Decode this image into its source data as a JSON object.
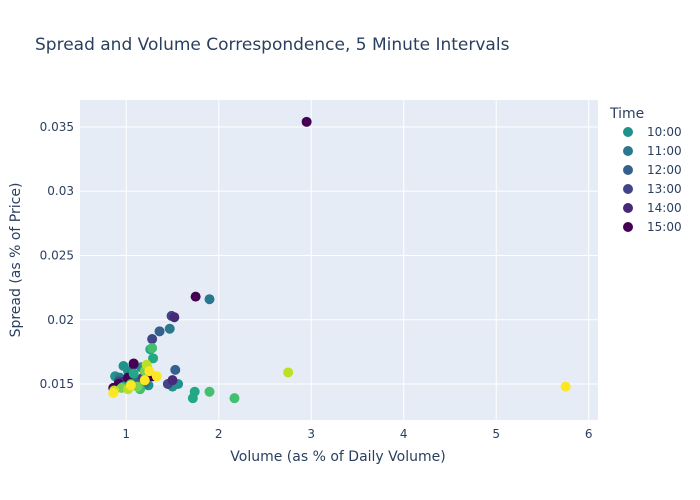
{
  "chart_data": {
    "type": "scatter",
    "title": "Spread and Volume Correspondence, 5 Minute Intervals",
    "xlabel": "Volume (as % of Daily Volume)",
    "ylabel": "Spread (as % of Price)",
    "xlim": [
      0.5,
      6.1
    ],
    "ylim": [
      0.0122,
      0.0371
    ],
    "xticks": [
      1,
      2,
      3,
      4,
      5,
      6
    ],
    "xtick_labels": [
      "1",
      "2",
      "3",
      "4",
      "5",
      "6"
    ],
    "yticks": [
      0.015,
      0.02,
      0.025,
      0.03,
      0.035
    ],
    "ytick_labels": [
      "0.015",
      "0.02",
      "0.025",
      "0.03",
      "0.035"
    ],
    "grid": true,
    "plot_bgcolor": "#e5ecf6",
    "legend_title": "Time",
    "legend_placement": "right",
    "series": [
      {
        "name": "10:00",
        "color": "#21918c",
        "points": [
          [
            0.88,
            0.0156
          ],
          [
            0.97,
            0.0164
          ],
          [
            1.02,
            0.016
          ],
          [
            1.1,
            0.0152
          ],
          [
            1.16,
            0.0163
          ],
          [
            1.24,
            0.0149
          ],
          [
            1.5,
            0.0148
          ],
          [
            1.56,
            0.015
          ]
        ]
      },
      {
        "name": "11:00",
        "color": "#2a788e",
        "points": [
          [
            1.47,
            0.0193
          ],
          [
            1.9,
            0.0216
          ],
          [
            0.93,
            0.0155
          ],
          [
            1.05,
            0.0153
          ],
          [
            1.2,
            0.015
          ]
        ]
      },
      {
        "name": "12:00",
        "color": "#355f8d",
        "points": [
          [
            1.36,
            0.0191
          ],
          [
            1.53,
            0.0161
          ],
          [
            1.0,
            0.0148
          ],
          [
            1.1,
            0.0154
          ]
        ]
      },
      {
        "name": "13:00",
        "color": "#414487",
        "points": [
          [
            1.49,
            0.0203
          ],
          [
            1.28,
            0.0185
          ],
          [
            1.45,
            0.015
          ],
          [
            0.92,
            0.0152
          ],
          [
            1.18,
            0.0155
          ]
        ]
      },
      {
        "name": "14:00",
        "color": "#482878",
        "points": [
          [
            1.52,
            0.0202
          ],
          [
            1.5,
            0.0153
          ],
          [
            1.08,
            0.0165
          ],
          [
            0.98,
            0.0152
          ]
        ]
      },
      {
        "name": "15:00",
        "color": "#440154",
        "points": [
          [
            2.95,
            0.0354
          ],
          [
            1.75,
            0.0218
          ],
          [
            1.08,
            0.0166
          ],
          [
            1.02,
            0.0155
          ],
          [
            0.92,
            0.015
          ],
          [
            1.28,
            0.0156
          ],
          [
            0.86,
            0.0147
          ]
        ]
      },
      {
        "name": "",
        "color": "#22a884",
        "points": [
          [
            1.26,
            0.0177
          ],
          [
            1.29,
            0.017
          ],
          [
            1.72,
            0.0139
          ],
          [
            1.74,
            0.0144
          ],
          [
            0.97,
            0.0148
          ],
          [
            1.08,
            0.0158
          ]
        ]
      },
      {
        "name": "",
        "color": "#44bf70",
        "points": [
          [
            1.9,
            0.0144
          ],
          [
            2.17,
            0.0139
          ],
          [
            1.28,
            0.0178
          ],
          [
            1.05,
            0.015
          ],
          [
            1.15,
            0.0146
          ]
        ]
      },
      {
        "name": "",
        "color": "#7ad151",
        "points": [
          [
            1.2,
            0.016
          ],
          [
            1.12,
            0.0148
          ],
          [
            0.95,
            0.0147
          ],
          [
            1.23,
            0.0162
          ]
        ]
      },
      {
        "name": "",
        "color": "#bddf26",
        "points": [
          [
            2.75,
            0.0159
          ],
          [
            1.22,
            0.0165
          ],
          [
            1.02,
            0.0146
          ],
          [
            0.87,
            0.0145
          ]
        ]
      },
      {
        "name": "",
        "color": "#fde725",
        "points": [
          [
            5.75,
            0.0148
          ],
          [
            1.33,
            0.0156
          ],
          [
            1.2,
            0.0153
          ],
          [
            0.86,
            0.0143
          ],
          [
            1.05,
            0.0149
          ],
          [
            1.25,
            0.016
          ]
        ]
      }
    ]
  }
}
